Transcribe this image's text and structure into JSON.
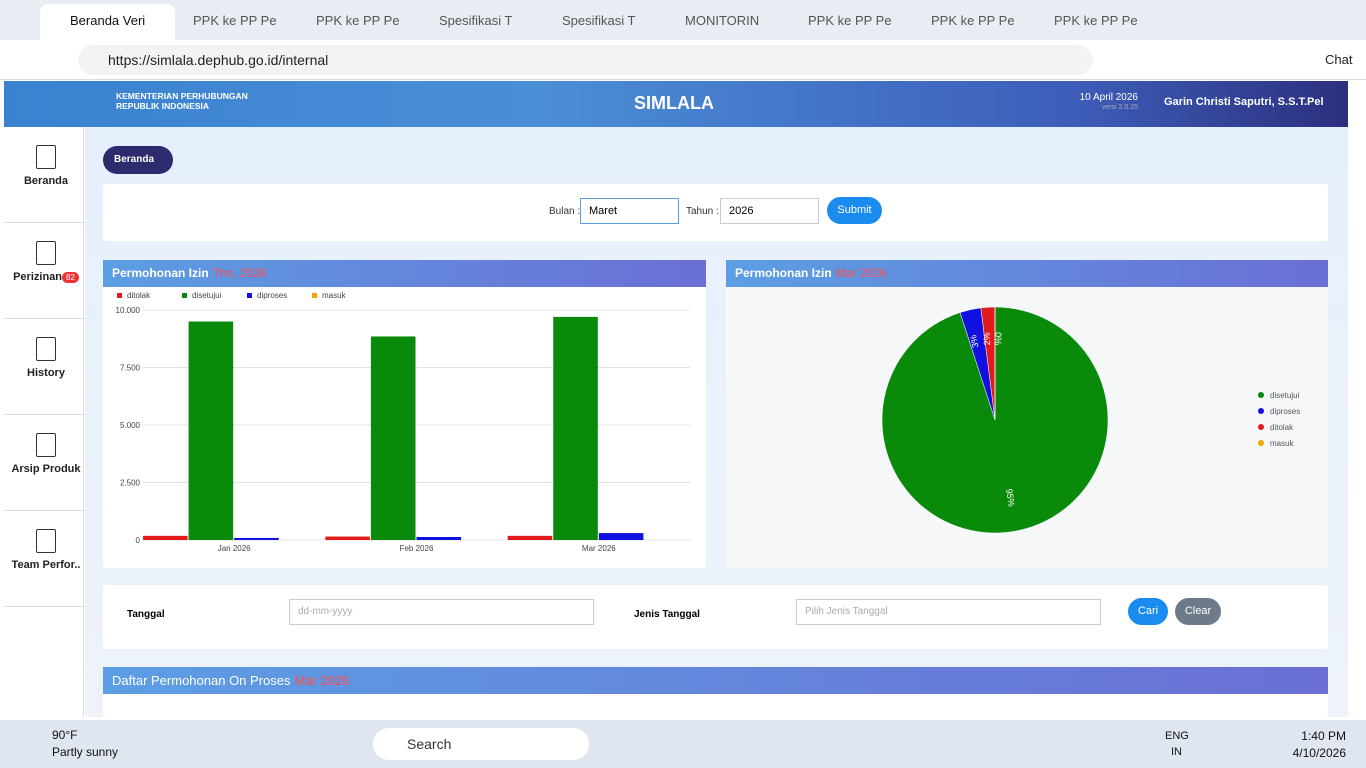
{
  "browser": {
    "tabs": [
      "Beranda Veri",
      "PPK ke PP Pe",
      "PPK ke PP Pe",
      "Spesifikasi T",
      "Spesifikasi T",
      "MONITORIN",
      "PPK ke PP Pe",
      "PPK ke PP Pe",
      "PPK ke PP Pe"
    ],
    "url": "https://simlala.dephub.go.id/internal",
    "chat": "Chat"
  },
  "app": {
    "org_line1": "KEMENTERIAN PERHUBUNGAN",
    "org_line2": "REPUBLIK INDONESIA",
    "title": "SIMLALA",
    "date": "10 April 2026",
    "version": "versi 2.0.25",
    "user": "Garin Christi Saputri, S.S.T.Pel"
  },
  "sidebar": {
    "items": [
      "Beranda",
      "Perizinan",
      "History",
      "Arsip Produk",
      "Team Perfor.."
    ],
    "badge": "82"
  },
  "breadcrumb": "Beranda",
  "filter": {
    "month_label": "Bulan :",
    "month": "Maret",
    "year_label": "Tahun :",
    "year": "2026",
    "submit": "Submit"
  },
  "chart_data": [
    {
      "type": "bar",
      "title": "Permohonan Izin",
      "subtitle": "Thn. 2026",
      "categories": [
        "Jan 2026",
        "Feb 2026",
        "Mar 2026"
      ],
      "series": [
        {
          "name": "ditolak",
          "color": "#e31a1c",
          "values": [
            180,
            150,
            180
          ]
        },
        {
          "name": "disetujui",
          "color": "#0a8a0a",
          "values": [
            9500,
            8850,
            9700
          ]
        },
        {
          "name": "diproses",
          "color": "#1010e0",
          "values": [
            90,
            130,
            300
          ]
        },
        {
          "name": "masuk",
          "color": "#f0a800",
          "values": [
            0,
            0,
            0
          ]
        }
      ],
      "ylim": [
        0,
        10000
      ],
      "yticks": [
        0,
        {
          "value": 2500,
          "label": "2.500"
        },
        {
          "value": 5000,
          "label": "5.000"
        },
        {
          "value": 7500,
          "label": "7.500"
        },
        {
          "value": 10000,
          "label": "10.000"
        }
      ],
      "grid": true,
      "legend": "top"
    },
    {
      "type": "pie",
      "title": "Permohonan Izin",
      "subtitle": "Mar 2026",
      "categories": [
        "disetujui",
        "diproses",
        "ditolak",
        "masuk"
      ],
      "values": [
        95,
        3,
        2,
        0
      ],
      "value_labels": [
        "95%",
        "3%",
        "2%",
        "0%"
      ],
      "colors": [
        "#0a8a0a",
        "#1010e0",
        "#e31a1c",
        "#f0a800"
      ],
      "legend": "right"
    }
  ],
  "search_form": {
    "date_label": "Tanggal",
    "date_placeholder": "dd-mm-yyyy",
    "type_label": "Jenis Tanggal",
    "type_placeholder": "Pilih Jenis Tanggal",
    "search": "Cari",
    "clear": "Clear"
  },
  "list_panel": {
    "title": "Daftar Permohonan On Proses",
    "subtitle": "Mar 2026"
  },
  "taskbar": {
    "temp": "90°F",
    "weather": "Partly sunny",
    "search": "Search",
    "lang1": "ENG",
    "lang2": "IN",
    "time": "1:40 PM",
    "date": "4/10/2026"
  }
}
